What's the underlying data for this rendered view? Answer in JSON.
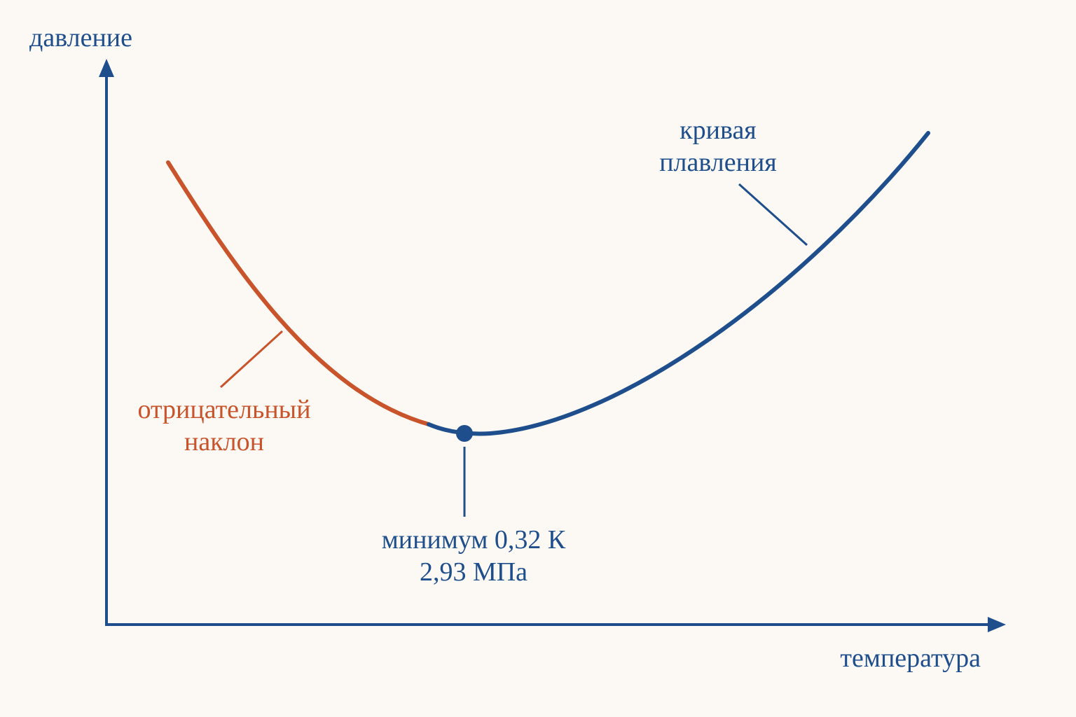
{
  "axes": {
    "y_label": "давление",
    "x_label": "температура"
  },
  "labels": {
    "melting_curve": [
      "кривая",
      "плавления"
    ],
    "negative_slope": [
      "отрицательный",
      "наклон"
    ],
    "minimum": [
      "минимум 0,32 К",
      "2,93 МПа"
    ]
  }
}
